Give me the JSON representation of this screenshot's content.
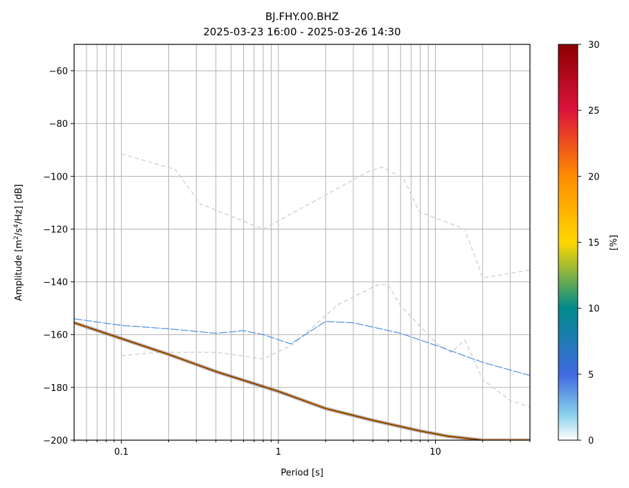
{
  "chart_data": {
    "type": "heatmap",
    "title_line1": "BJ.FHY.00.BHZ",
    "title_line2": "2025-03-23 16:00 - 2025-03-26 14:30",
    "xlabel": "Period [s]",
    "ylabel": "Amplitude [m²/s⁴/Hz] [dB]",
    "x_scale": "log",
    "xlim": [
      0.05,
      40
    ],
    "ylim": [
      -200,
      -50
    ],
    "grid": true,
    "x_ticks": [
      {
        "value": 0.1,
        "label": "0.1"
      },
      {
        "value": 1,
        "label": "1"
      },
      {
        "value": 10,
        "label": "10"
      }
    ],
    "y_ticks": [
      {
        "value": -60,
        "label": "−60"
      },
      {
        "value": -80,
        "label": "−80"
      },
      {
        "value": -100,
        "label": "−100"
      },
      {
        "value": -120,
        "label": "−120"
      },
      {
        "value": -140,
        "label": "−140"
      },
      {
        "value": -160,
        "label": "−160"
      },
      {
        "value": -180,
        "label": "−180"
      },
      {
        "value": -200,
        "label": "−200"
      }
    ],
    "colorbar": {
      "label": "[%]",
      "range": [
        0,
        30
      ],
      "ticks": [
        {
          "value": 0,
          "label": "0"
        },
        {
          "value": 5,
          "label": "5"
        },
        {
          "value": 10,
          "label": "10"
        },
        {
          "value": 15,
          "label": "15"
        },
        {
          "value": 20,
          "label": "20"
        },
        {
          "value": 25,
          "label": "25"
        },
        {
          "value": 30,
          "label": "30"
        }
      ],
      "stops": [
        {
          "value": 0,
          "color": "#ffffff"
        },
        {
          "value": 2,
          "color": "#87ceeb"
        },
        {
          "value": 5,
          "color": "#4169e1"
        },
        {
          "value": 10,
          "color": "#008b8b"
        },
        {
          "value": 15,
          "color": "#ffd700"
        },
        {
          "value": 20,
          "color": "#ff8c00"
        },
        {
          "value": 25,
          "color": "#dc143c"
        },
        {
          "value": 30,
          "color": "#8b0000"
        }
      ]
    },
    "noise_models": [
      {
        "name": "high",
        "color": "#d3d3d3",
        "points": [
          [
            0.1,
            -91.5
          ],
          [
            0.22,
            -97.4
          ],
          [
            0.32,
            -110.5
          ],
          [
            0.8,
            -120
          ],
          [
            3.8,
            -98
          ],
          [
            4.6,
            -96.5
          ],
          [
            6.3,
            -101
          ],
          [
            7.9,
            -113.5
          ],
          [
            15.4,
            -120
          ],
          [
            20,
            -138.5
          ],
          [
            40,
            -135.5
          ]
        ]
      },
      {
        "name": "low",
        "color": "#d3d3d3",
        "points": [
          [
            0.1,
            -168
          ],
          [
            0.17,
            -166.7
          ],
          [
            0.4,
            -166.7
          ],
          [
            0.8,
            -169.2
          ],
          [
            1.24,
            -163.7
          ],
          [
            2.4,
            -148.6
          ],
          [
            4.3,
            -141.1
          ],
          [
            5.0,
            -141.1
          ],
          [
            6.0,
            -149
          ],
          [
            10,
            -163
          ],
          [
            12.6,
            -166.7
          ],
          [
            15.4,
            -162.1
          ],
          [
            20,
            -177
          ],
          [
            30,
            -185
          ],
          [
            40,
            -187.5
          ]
        ]
      }
    ],
    "ppsd_main": {
      "color": "#ff8c00",
      "points": [
        [
          0.05,
          -155.5
        ],
        [
          0.1,
          -161.5
        ],
        [
          0.2,
          -167.5
        ],
        [
          0.4,
          -174
        ],
        [
          1,
          -181.5
        ],
        [
          2,
          -188
        ],
        [
          4,
          -192.5
        ],
        [
          8,
          -196.5
        ],
        [
          12,
          -198.5
        ],
        [
          20,
          -200
        ],
        [
          40,
          -200
        ]
      ]
    },
    "ppsd_secondary": {
      "color": "#4a90e2",
      "points": [
        [
          0.05,
          -154
        ],
        [
          0.1,
          -156.5
        ],
        [
          0.2,
          -157.8
        ],
        [
          0.4,
          -159.5
        ],
        [
          0.6,
          -158.5
        ],
        [
          0.8,
          -160
        ],
        [
          1.2,
          -163.5
        ],
        [
          2,
          -155
        ],
        [
          3,
          -155.5
        ],
        [
          6,
          -159.5
        ],
        [
          10,
          -164
        ],
        [
          20,
          -170.5
        ],
        [
          40,
          -175.5
        ]
      ]
    }
  }
}
